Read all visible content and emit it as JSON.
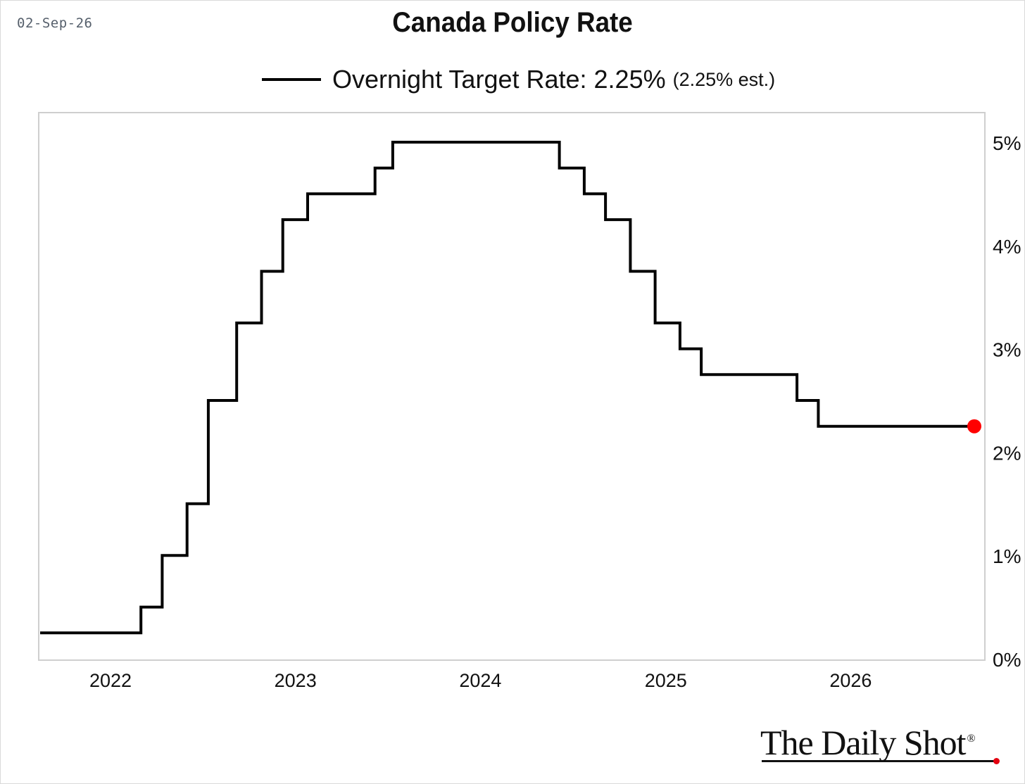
{
  "header": {
    "date": "02-Sep-26",
    "title": "Canada Policy Rate"
  },
  "legend": {
    "label": "Overnight Target Rate: 2.25%",
    "estimate": "(2.25% est.)"
  },
  "brand": {
    "logo_text": "The Daily Shot",
    "registered_mark": "®"
  },
  "colors": {
    "line": "#000000",
    "last_point": "#ff0000",
    "plot_border": "#cfcfcf",
    "logo_dot": "#e3000f"
  },
  "chart_data": {
    "type": "line",
    "step": true,
    "title": "Canada Policy Rate",
    "xlabel": "",
    "ylabel": "",
    "y_axis_side": "right",
    "grid": false,
    "legend_placement": "top-center",
    "xlim": [
      "2021-08-15",
      "2026-09-02"
    ],
    "ylim": [
      0,
      5.25
    ],
    "x_ticks": [
      "2022",
      "2023",
      "2024",
      "2025",
      "2026"
    ],
    "y_ticks": [
      "0%",
      "1%",
      "2%",
      "3%",
      "4%",
      "5%"
    ],
    "series": [
      {
        "name": "Overnight Target Rate",
        "x": [
          "2021-08-15",
          "2022-03-02",
          "2022-04-13",
          "2022-06-01",
          "2022-07-13",
          "2022-09-07",
          "2022-10-26",
          "2022-12-07",
          "2023-01-25",
          "2023-06-07",
          "2023-07-12",
          "2024-06-05",
          "2024-07-24",
          "2024-09-04",
          "2024-10-23",
          "2024-12-11",
          "2025-01-29",
          "2025-03-12",
          "2025-09-17",
          "2025-10-29",
          "2026-09-02"
        ],
        "values": [
          0.25,
          0.5,
          1.0,
          1.5,
          2.5,
          3.25,
          3.75,
          4.25,
          4.5,
          4.75,
          5.0,
          4.75,
          4.5,
          4.25,
          3.75,
          3.25,
          3.0,
          2.75,
          2.5,
          2.25,
          2.25
        ]
      }
    ],
    "last_value": 2.25
  }
}
